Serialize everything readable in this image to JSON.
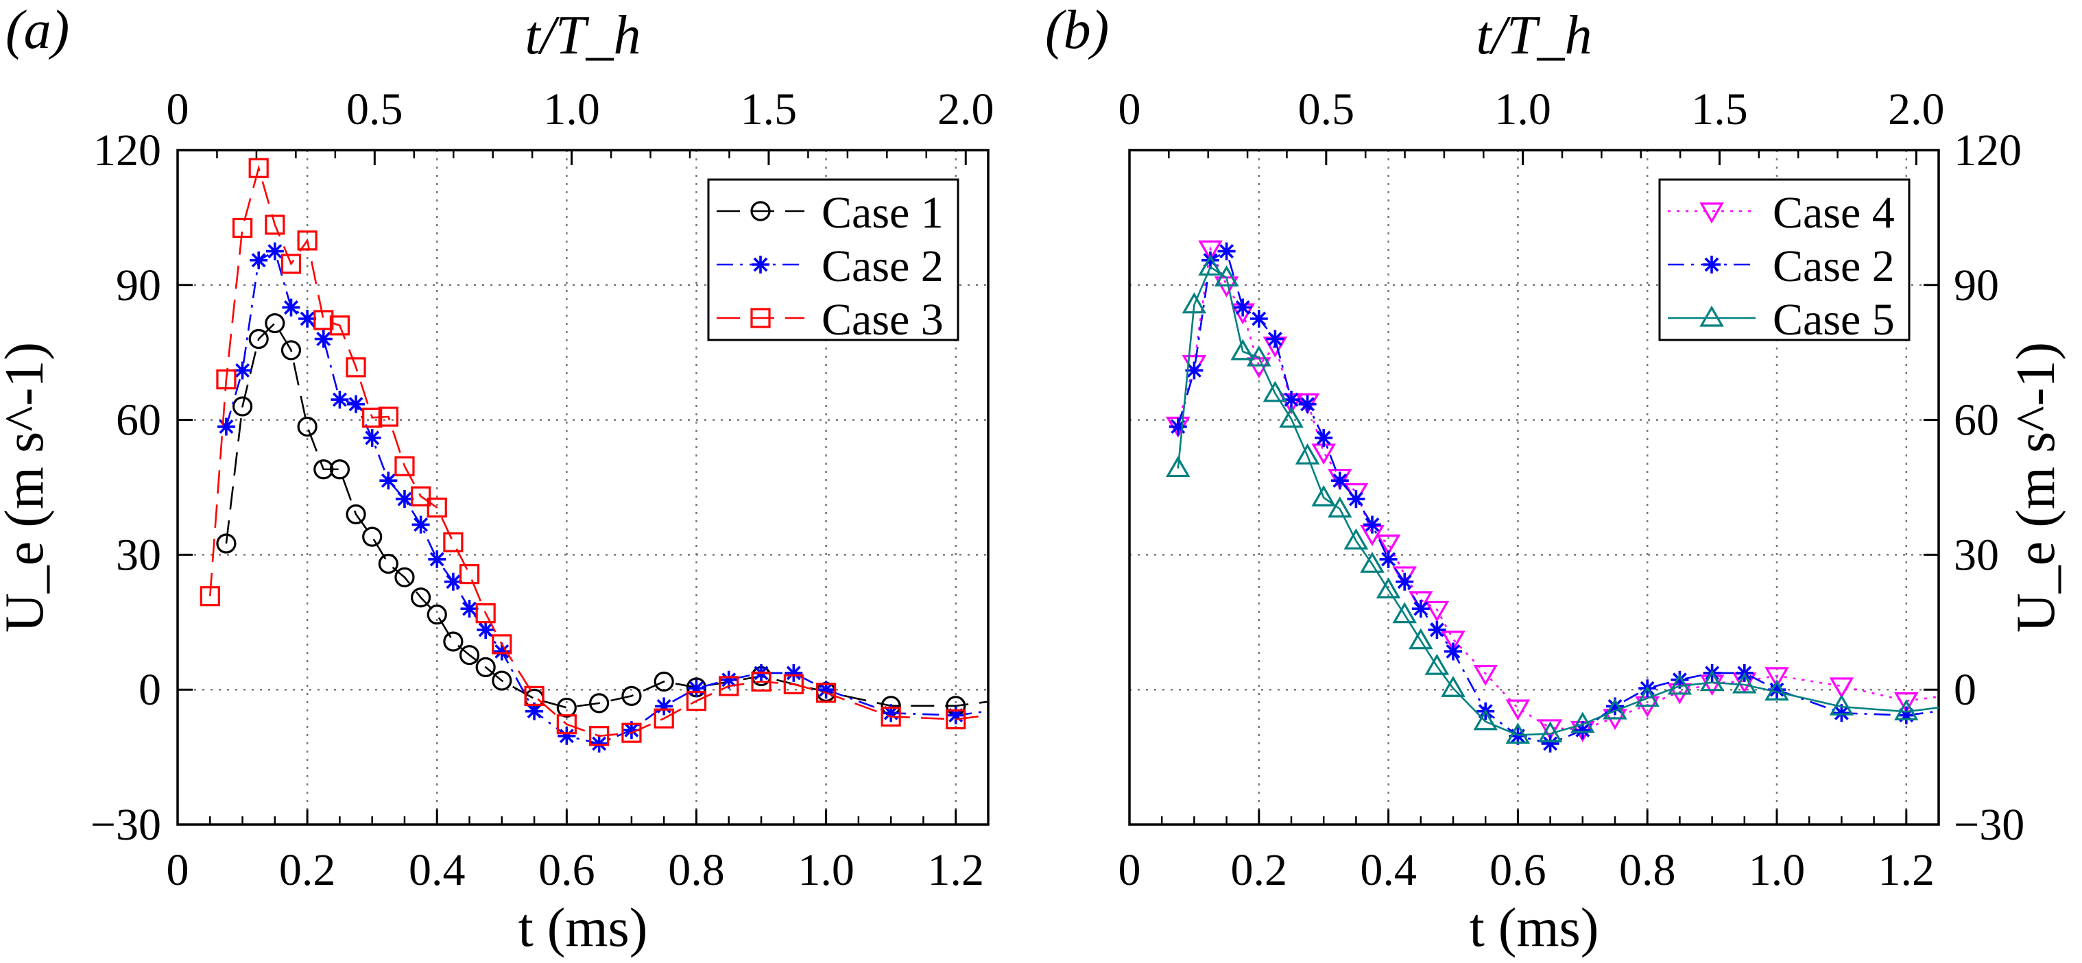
{
  "chart_data": [
    {
      "type": "line",
      "panel_label": "(a)",
      "xlabel": "t (ms)",
      "xlabel_top": "t/T_h",
      "ylabel": "U_e (m s^-1)",
      "xlim": [
        0,
        1.25
      ],
      "ylim": [
        -30,
        120
      ],
      "xlim_top": [
        0,
        2.057
      ],
      "xticks": [
        "0",
        "0.2",
        "0.4",
        "0.6",
        "0.8",
        "1.0",
        "1.2"
      ],
      "xticks_top": [
        "0",
        "0.5",
        "1.0",
        "1.5",
        "2.0"
      ],
      "yticks": [
        "−30",
        "0",
        "30",
        "60",
        "90",
        "120"
      ],
      "y_axis_side": "left",
      "grid": true,
      "legend_position": "top-right",
      "series": [
        {
          "name": "Case 1",
          "color": "#000000",
          "marker": "circle",
          "line": "dashed",
          "x": [
            0.075,
            0.1,
            0.125,
            0.15,
            0.175,
            0.2,
            0.225,
            0.25,
            0.275,
            0.3,
            0.325,
            0.35,
            0.375,
            0.4,
            0.425,
            0.45,
            0.475,
            0.5,
            0.55,
            0.6,
            0.65,
            0.7,
            0.75,
            0.8,
            0.9,
            1.0,
            1.1,
            1.2
          ],
          "y": [
            32.5,
            63,
            78,
            81.5,
            75.5,
            58.5,
            49,
            49,
            39,
            34,
            28,
            25,
            20.5,
            16.7,
            10.7,
            7.7,
            5,
            2,
            -2,
            -4,
            -3,
            -1.4,
            1.8,
            0.5,
            3,
            -0.5,
            -3.6,
            -3.6
          ]
        },
        {
          "name": "Case 2",
          "color": "#0000ff",
          "marker": "star",
          "line": "dashdot",
          "x": [
            0.075,
            0.1,
            0.125,
            0.15,
            0.175,
            0.2,
            0.225,
            0.25,
            0.275,
            0.3,
            0.325,
            0.35,
            0.375,
            0.4,
            0.425,
            0.45,
            0.475,
            0.5,
            0.55,
            0.6,
            0.65,
            0.7,
            0.75,
            0.8,
            0.85,
            0.9,
            0.95,
            1.0,
            1.1,
            1.2
          ],
          "y": [
            58.5,
            71,
            95.5,
            97.5,
            85,
            82.5,
            78,
            64.5,
            63.5,
            56,
            46.5,
            42.4,
            36.7,
            29,
            24,
            18,
            13.3,
            8.5,
            -4.8,
            -10.3,
            -12,
            -9,
            -3.7,
            0.3,
            2.2,
            3.7,
            3.7,
            0,
            -5.2,
            -5.7
          ]
        },
        {
          "name": "Case 3",
          "color": "#ff0000",
          "marker": "square",
          "line": "dashed",
          "x": [
            0.05,
            0.075,
            0.1,
            0.125,
            0.15,
            0.175,
            0.2,
            0.225,
            0.25,
            0.275,
            0.3,
            0.325,
            0.35,
            0.375,
            0.4,
            0.425,
            0.45,
            0.475,
            0.5,
            0.55,
            0.6,
            0.65,
            0.7,
            0.75,
            0.8,
            0.85,
            0.9,
            0.95,
            1.0,
            1.1,
            1.2
          ],
          "y": [
            20.8,
            69,
            102.7,
            116,
            103.4,
            94.7,
            99.9,
            82.2,
            81,
            71.7,
            60.5,
            60.7,
            49.7,
            43,
            40.5,
            32.8,
            25.7,
            17,
            10.1,
            -1.4,
            -7.7,
            -10.3,
            -9.6,
            -6.4,
            -2.5,
            0.8,
            1.8,
            1.2,
            -0.7,
            -6,
            -6.6
          ]
        }
      ]
    },
    {
      "type": "line",
      "panel_label": "(b)",
      "xlabel": "t (ms)",
      "xlabel_top": "t/T_h",
      "ylabel": "U_e (m s^-1)",
      "xlim": [
        0,
        1.25
      ],
      "ylim": [
        -30,
        120
      ],
      "xlim_top": [
        0,
        2.057
      ],
      "xticks": [
        "0",
        "0.2",
        "0.4",
        "0.6",
        "0.8",
        "1.0",
        "1.2"
      ],
      "xticks_top": [
        "0",
        "0.5",
        "1.0",
        "1.5",
        "2.0"
      ],
      "yticks": [
        "−30",
        "0",
        "30",
        "60",
        "90",
        "120"
      ],
      "y_axis_side": "right",
      "grid": true,
      "legend_position": "top-right",
      "series": [
        {
          "name": "Case 4",
          "color": "#ff00ff",
          "marker": "triangle-down",
          "line": "dotted",
          "x": [
            0.075,
            0.1,
            0.125,
            0.15,
            0.175,
            0.2,
            0.225,
            0.25,
            0.275,
            0.3,
            0.325,
            0.35,
            0.375,
            0.4,
            0.425,
            0.45,
            0.475,
            0.5,
            0.55,
            0.6,
            0.65,
            0.7,
            0.75,
            0.8,
            0.85,
            0.9,
            0.95,
            1.0,
            1.1,
            1.2
          ],
          "y": [
            58.8,
            72.5,
            98,
            90,
            84,
            72,
            76.6,
            64,
            64,
            52.8,
            47.2,
            44,
            34.7,
            32.6,
            25.5,
            20,
            17.8,
            11.2,
            3.6,
            -4.1,
            -8.5,
            -8.9,
            -6.2,
            -3.4,
            -0.5,
            1.4,
            1.9,
            3.1,
            0.8,
            -2.5
          ]
        },
        {
          "name": "Case 2",
          "color": "#0000ff",
          "marker": "star",
          "line": "dashdot",
          "x": [
            0.075,
            0.1,
            0.125,
            0.15,
            0.175,
            0.2,
            0.225,
            0.25,
            0.275,
            0.3,
            0.325,
            0.35,
            0.375,
            0.4,
            0.425,
            0.45,
            0.475,
            0.5,
            0.55,
            0.6,
            0.65,
            0.7,
            0.75,
            0.8,
            0.85,
            0.9,
            0.95,
            1.0,
            1.1,
            1.2
          ],
          "y": [
            58.5,
            71,
            95.5,
            97.5,
            85,
            82.5,
            78,
            64.5,
            63.5,
            56,
            46.5,
            42.4,
            36.7,
            29,
            24,
            18,
            13.3,
            8.5,
            -4.8,
            -10.3,
            -12,
            -9,
            -3.7,
            0.3,
            2.2,
            3.7,
            3.7,
            0,
            -5.2,
            -5.7
          ]
        },
        {
          "name": "Case 5",
          "color": "#008080",
          "marker": "triangle-up",
          "line": "solid",
          "x": [
            0.075,
            0.1,
            0.125,
            0.15,
            0.175,
            0.2,
            0.225,
            0.25,
            0.275,
            0.3,
            0.325,
            0.35,
            0.375,
            0.4,
            0.425,
            0.45,
            0.475,
            0.5,
            0.55,
            0.6,
            0.65,
            0.7,
            0.75,
            0.8,
            0.85,
            0.9,
            0.95,
            1.0,
            1.1,
            1.2
          ],
          "y": [
            49.2,
            85.6,
            94,
            91.6,
            75.2,
            73.8,
            65.9,
            60.2,
            52,
            42.7,
            40.2,
            33.1,
            27.9,
            22.2,
            16.7,
            10.9,
            5.2,
            0.3,
            -7.1,
            -10.1,
            -9.8,
            -7.7,
            -4.7,
            -1.9,
            0.8,
            1.6,
            1.1,
            -0.5,
            -3.8,
            -4.9
          ]
        }
      ]
    }
  ]
}
